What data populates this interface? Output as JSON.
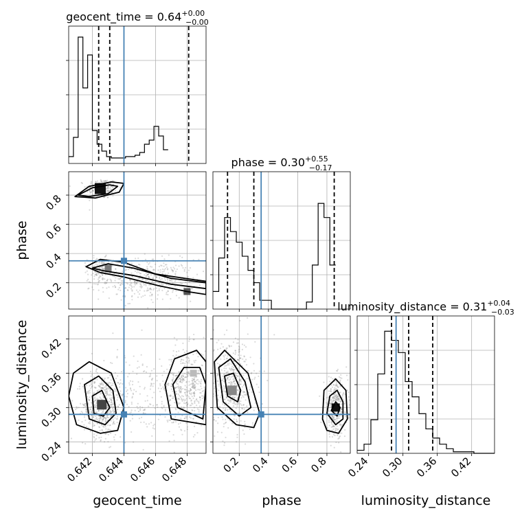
{
  "chart_data": {
    "type": "corner",
    "parameters": [
      "geocent_time",
      "phase",
      "luminosity_distance"
    ],
    "axis_labels": [
      "geocent_time",
      "phase",
      "luminosity_distance"
    ],
    "ranges": [
      [
        0.6405,
        0.6492
      ],
      [
        0.02,
        0.96
      ],
      [
        0.22,
        0.46
      ]
    ],
    "ticks": [
      {
        "values": [
          0.642,
          0.644,
          0.646,
          0.648
        ],
        "labels": [
          "0.642",
          "0.644",
          "0.646",
          "0.648"
        ]
      },
      {
        "values": [
          0.2,
          0.4,
          0.6,
          0.8
        ],
        "labels": [
          "0.2",
          "0.4",
          "0.6",
          "0.8"
        ]
      },
      {
        "values": [
          0.24,
          0.3,
          0.36,
          0.42
        ],
        "labels": [
          "0.24",
          "0.30",
          "0.36",
          "0.42"
        ]
      }
    ],
    "titles": [
      {
        "text": "geocent_time = 0.64",
        "upper": "+0.00",
        "lower": "−0.00"
      },
      {
        "text": "phase = 0.30",
        "upper": "+0.55",
        "lower": "−0.17"
      },
      {
        "text": "luminosity_distance = 0.31",
        "upper": "+0.04",
        "lower": "−0.03"
      }
    ],
    "truths": [
      0.644,
      0.35,
      0.288
    ],
    "quantiles": [
      [
        0.6424,
        0.6431,
        0.6481
      ],
      [
        0.12,
        0.3,
        0.85
      ],
      [
        0.28,
        0.31,
        0.352
      ]
    ],
    "histograms": [
      {
        "edges_start": 0.6405,
        "bin_width": 0.0003,
        "counts": [
          5,
          19,
          92,
          55,
          79,
          24,
          14,
          9,
          5,
          4,
          4,
          4,
          5,
          5,
          6,
          8,
          14,
          17,
          27,
          20,
          10
        ],
        "ymax": 100
      },
      {
        "edges_start": 0.02,
        "bin_width": 0.04,
        "counts": [
          10,
          29,
          52,
          44,
          38,
          30,
          22,
          15,
          5,
          5,
          0,
          0,
          0,
          0,
          0,
          0,
          4,
          25,
          60,
          52,
          25
        ],
        "ymax": 78
      },
      {
        "edges_start": 0.22,
        "bin_width": 0.012,
        "counts": [
          2,
          6,
          22,
          52,
          80,
          74,
          66,
          47,
          37,
          26,
          16,
          10,
          6,
          3,
          1,
          1,
          1,
          0,
          0,
          0
        ],
        "ymax": 90
      }
    ],
    "grid": true,
    "marker_color": "#4682b4",
    "density_color": "#000000"
  }
}
